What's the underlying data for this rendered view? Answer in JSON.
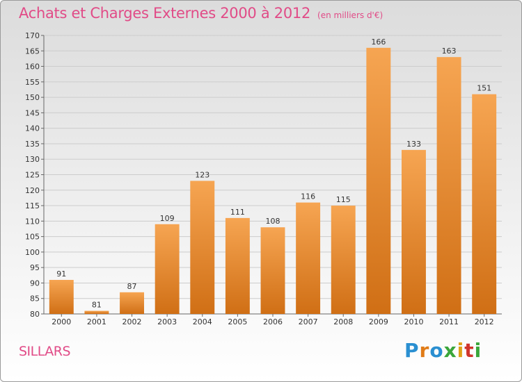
{
  "header": {
    "title": "Achats et Charges Externes 2000 à 2012",
    "unit": "(en milliers d'€)"
  },
  "footer": {
    "town": "SILLARS",
    "brand": "Proxiti",
    "brand_letters": [
      "P",
      "r",
      "o",
      "x",
      "i",
      "t",
      "i"
    ],
    "brand_colors": [
      "#2a8fd1",
      "#e07b17",
      "#2a8fd1",
      "#3aa63a",
      "#e0a117",
      "#d0342c",
      "#3aa63a"
    ]
  },
  "colors": {
    "bar_light": "#f6a552",
    "bar_dark": "#d06f15",
    "title": "#e14b87",
    "grid": "#cccccc"
  },
  "chart_data": {
    "type": "bar",
    "categories": [
      "2000",
      "2001",
      "2002",
      "2003",
      "2004",
      "2005",
      "2006",
      "2007",
      "2008",
      "2009",
      "2010",
      "2011",
      "2012"
    ],
    "values": [
      91,
      81,
      87,
      109,
      123,
      111,
      108,
      116,
      115,
      166,
      133,
      163,
      151
    ],
    "title": "Achats et Charges Externes 2000 à 2012",
    "xlabel": "",
    "ylabel": "",
    "ylim": [
      80,
      170
    ],
    "yticks": [
      80,
      85,
      90,
      95,
      100,
      105,
      110,
      115,
      120,
      125,
      130,
      135,
      140,
      145,
      150,
      155,
      160,
      165,
      170
    ],
    "grid": true,
    "data_labels": true
  }
}
